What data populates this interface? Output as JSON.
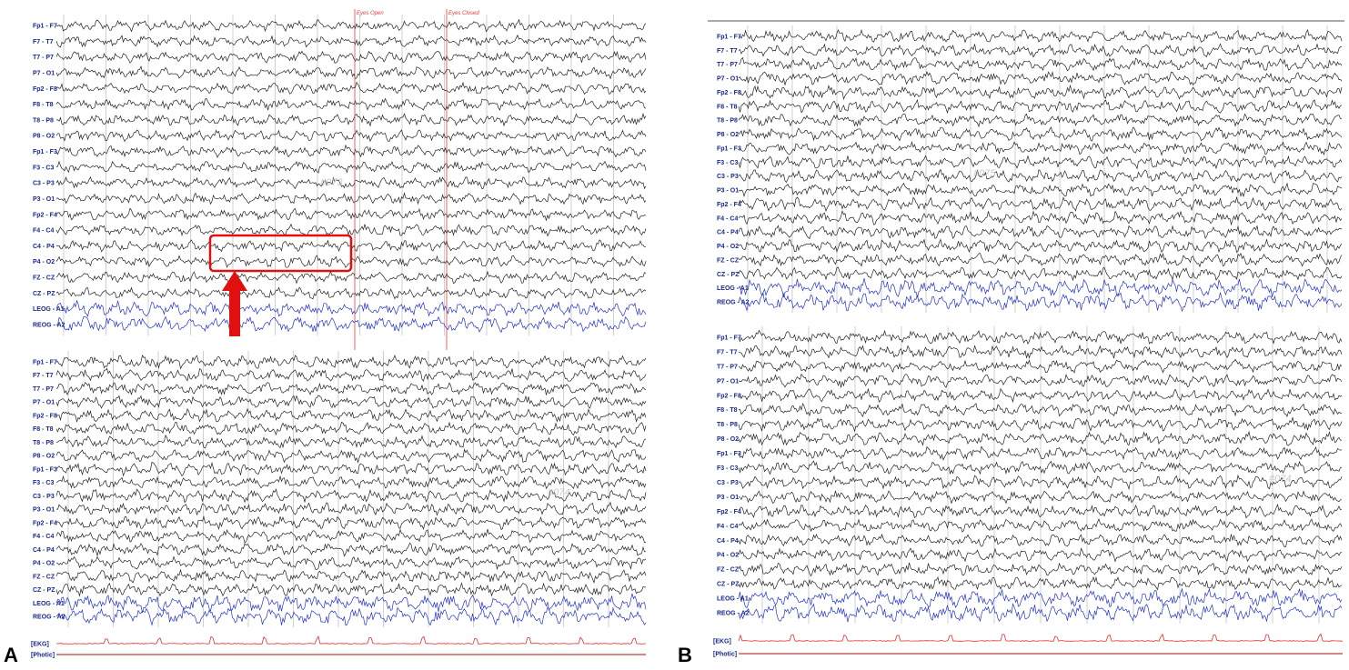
{
  "colors": {
    "eeg_trace": "#222222",
    "eog_trace": "#2233cc",
    "channel_label": "#1a2a8a",
    "ekg_trace": "#e03030",
    "photic_trace": "#a01010",
    "marker_line": "#e04040",
    "highlight_box": "#e01010",
    "arrow": "#e01010",
    "grid_line": "#b0b0b0",
    "page_number": "#c8c8c8"
  },
  "channels": [
    "Fp1 - F7",
    "F7 - T7",
    "T7 - P7",
    "P7 - O1",
    "Fp2 - F8",
    "F8 - T8",
    "T8 - P8",
    "P8 - O2",
    "Fp1 - F3",
    "F3 - C3",
    "C3 - P3",
    "P3 - O1",
    "Fp2 - F4",
    "F4 - C4",
    "C4 - P4",
    "P4 - O2",
    "FZ - CZ",
    "CZ - PZ",
    "LEOG - A1",
    "REOG - A2"
  ],
  "aux_channels": [
    "[EKG]",
    "[Photic]"
  ],
  "panel_a": {
    "letter": "A",
    "markers": {
      "eyes_open": "Eyes Open",
      "eyes_closed": "Eyes Closed"
    },
    "top_page": "#073",
    "bottom_page": "#074"
  },
  "panel_b": {
    "letter": "B",
    "top_page": "#075",
    "bottom_page": "#074"
  },
  "annotations": {
    "highlight": "red box around C4 - P4 and P4 - O2 traces",
    "arrow": "red up-pointing arrow"
  }
}
